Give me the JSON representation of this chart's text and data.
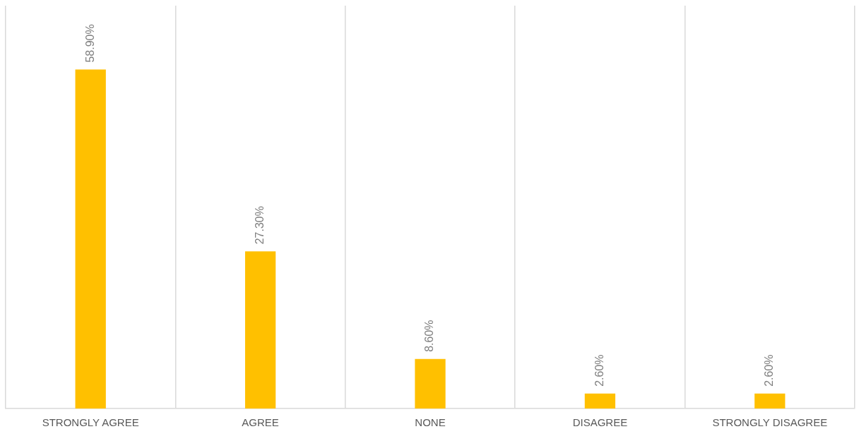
{
  "chart_data": {
    "type": "bar",
    "categories": [
      "STRONGLY AGREE",
      "AGREE",
      "NONE",
      "DISAGREE",
      "STRONGLY DISAGREE"
    ],
    "values": [
      58.9,
      27.3,
      8.6,
      2.6,
      2.6
    ],
    "value_labels": [
      "58.90%",
      "27.30%",
      "8.60%",
      "2.60%",
      "2.60%"
    ],
    "color": "#ffc000",
    "grid": "x",
    "legend": false
  }
}
